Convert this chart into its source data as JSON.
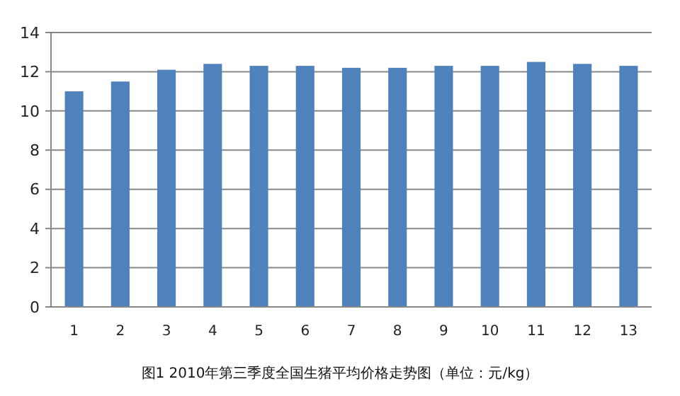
{
  "chart_data": {
    "type": "bar",
    "title": "图1 2010年第三季度全国生猪平均价格走势图（单位：元/kg）",
    "categories": [
      "1",
      "2",
      "3",
      "4",
      "5",
      "6",
      "7",
      "8",
      "9",
      "10",
      "11",
      "12",
      "13"
    ],
    "values": [
      11.0,
      11.5,
      12.1,
      12.4,
      12.3,
      12.3,
      12.2,
      12.2,
      12.3,
      12.3,
      12.5,
      12.4,
      12.3
    ],
    "color": "#4f81bd",
    "ylim": [
      0,
      14
    ],
    "yticks": [
      0,
      2,
      4,
      6,
      8,
      10,
      12,
      14
    ],
    "grid": "y"
  }
}
